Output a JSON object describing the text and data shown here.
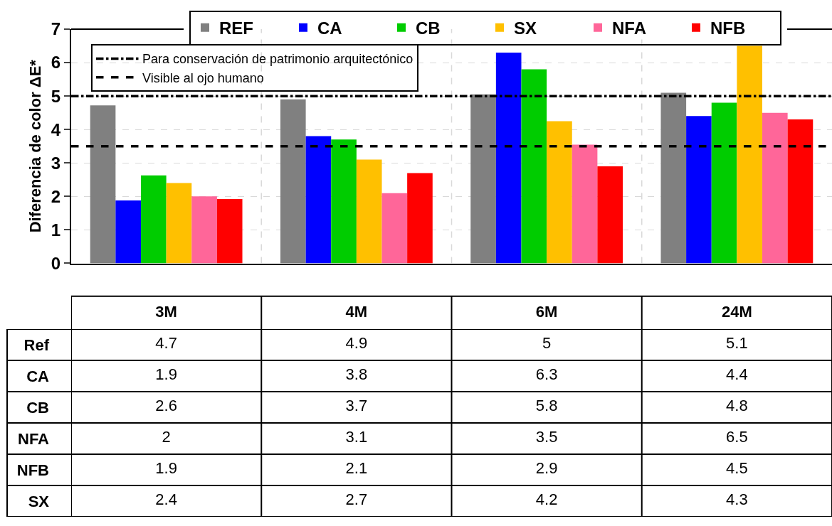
{
  "chart_data": [
    {
      "type": "bar",
      "ylabel": "Diferencia de color ΔE*",
      "categories": [
        null,
        null,
        null,
        null
      ],
      "series": [
        {
          "name": "REF",
          "color": "#808080",
          "values": [
            4.72,
            4.9,
            5.05,
            5.1
          ]
        },
        {
          "name": "CA",
          "color": "#0000ff",
          "values": [
            1.88,
            3.8,
            6.3,
            4.4
          ]
        },
        {
          "name": "CB",
          "color": "#00cc00",
          "values": [
            2.63,
            3.7,
            5.8,
            4.8
          ]
        },
        {
          "name": "SX",
          "color": "#ffc000",
          "values": [
            2.4,
            3.1,
            4.25,
            6.5
          ]
        },
        {
          "name": "NFA",
          "color": "#ff6699",
          "values": [
            2.0,
            2.1,
            3.55,
            4.5
          ]
        },
        {
          "name": "NFB",
          "color": "#ff0000",
          "values": [
            1.92,
            2.7,
            2.9,
            4.3
          ]
        }
      ],
      "ref_lines": [
        {
          "axis": "y",
          "value": 5,
          "label": "Para conservación de patrimonio arquitectónico",
          "line_style": "dashdot",
          "color": "#000000"
        },
        {
          "axis": "y",
          "value": 3.5,
          "label": "Visible al ojo humano",
          "line_style": "dashed",
          "color": "#000000"
        }
      ],
      "ylim": [
        0,
        7
      ],
      "yticks": [
        0,
        1,
        2,
        3,
        4,
        5,
        6,
        7
      ],
      "grid": true,
      "legend": "top",
      "tick_labels": "y"
    },
    {
      "type": "other",
      "categories": [
        "3M",
        "4M",
        "6M",
        "24M"
      ],
      "data_labels": true,
      "series": [
        {
          "name": "Ref",
          "values": [
            4.7,
            4.9,
            5,
            5.1
          ]
        },
        {
          "name": "CA",
          "values": [
            1.9,
            3.8,
            6.3,
            4.4
          ]
        },
        {
          "name": "CB",
          "values": [
            2.6,
            3.7,
            5.8,
            4.8
          ]
        },
        {
          "name": "NFA",
          "values": [
            2,
            3.1,
            3.5,
            6.5
          ]
        },
        {
          "name": "NFB",
          "values": [
            1.9,
            2.1,
            2.9,
            4.5
          ]
        },
        {
          "name": "SX",
          "values": [
            2.4,
            2.7,
            4.2,
            4.3
          ]
        }
      ]
    }
  ]
}
